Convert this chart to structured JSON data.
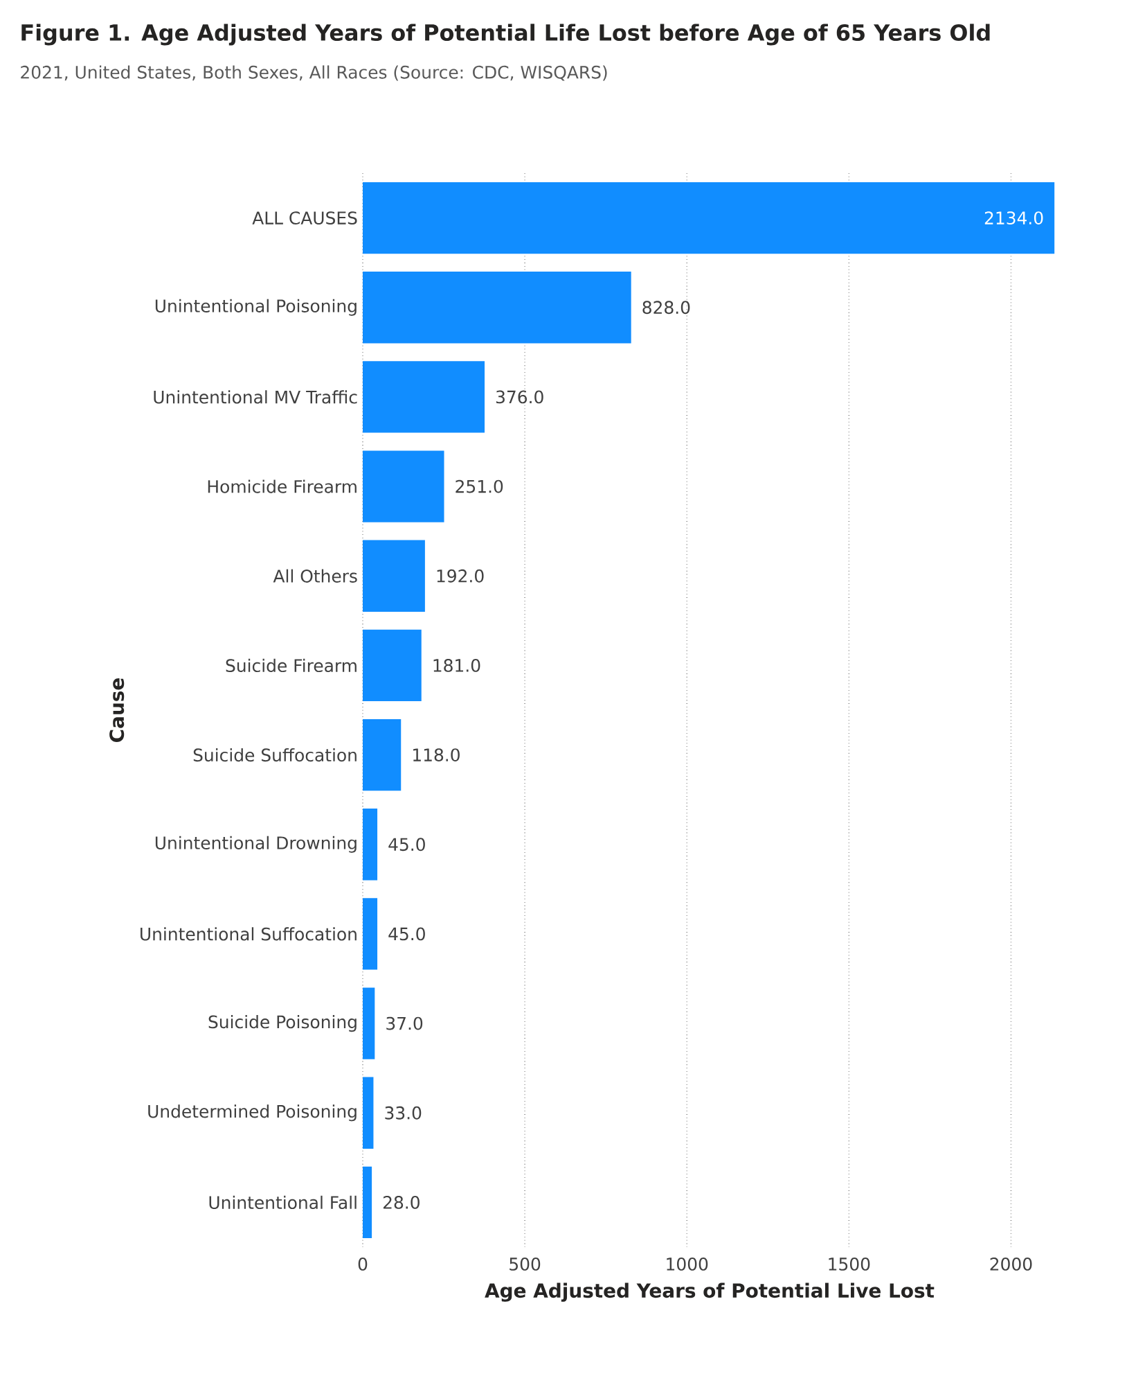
{
  "chart_data": {
    "type": "bar",
    "orientation": "horizontal",
    "title": "Figure 1. Age Adjusted Years of Potential Life Lost before Age of 65 Years Old",
    "subtitle": "2021, United States, Both Sexes, All Races (Source: CDC, WISQARS)",
    "xlabel": "Age Adjusted Years of Potential Live Lost",
    "ylabel": "Cause",
    "categories": [
      "ALL CAUSES",
      "Unintentional Poisoning",
      "Unintentional MV Traffic",
      "Homicide Firearm",
      "All Others",
      "Suicide Firearm",
      "Suicide Suffocation",
      "Unintentional Drowning",
      "Unintentional Suffocation",
      "Suicide Poisoning",
      "Undetermined Poisoning",
      "Unintentional Fall"
    ],
    "values": [
      2134,
      828,
      376,
      251,
      192,
      181,
      118,
      45,
      45,
      37,
      33,
      28
    ],
    "value_labels": [
      "2134.0",
      "828.0",
      "376.0",
      "251.0",
      "192.0",
      "181.0",
      "118.0",
      "45.0",
      "45.0",
      "37.0",
      "33.0",
      "28.0"
    ],
    "color": "#118dff",
    "xlim": [
      0,
      2140
    ],
    "xticks": [
      0,
      500,
      1000,
      1500,
      2000
    ],
    "grid": "x"
  }
}
